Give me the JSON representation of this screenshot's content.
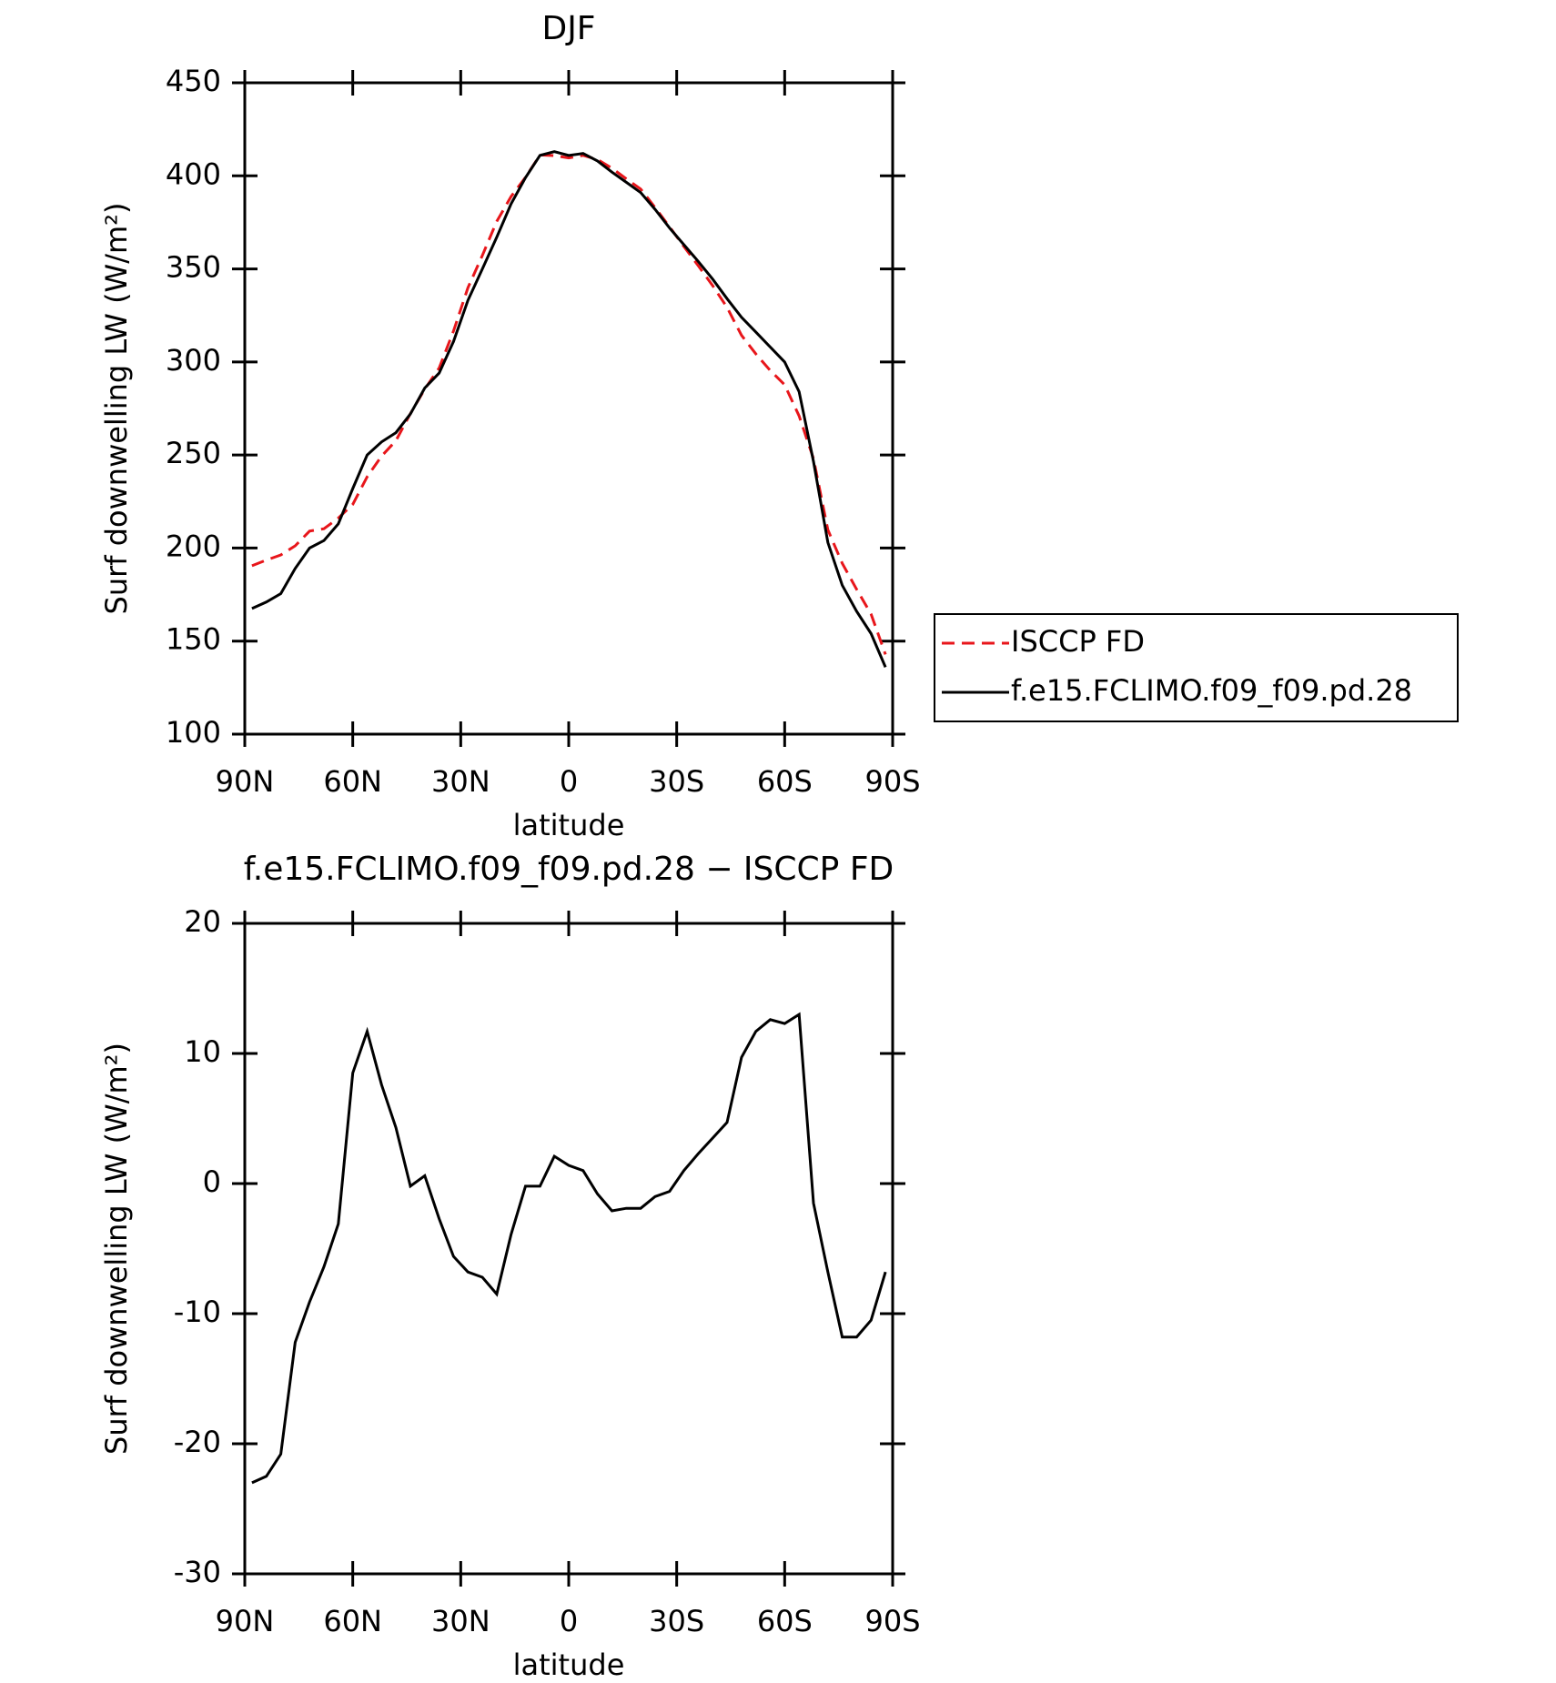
{
  "chart_data": [
    {
      "type": "line",
      "title": "DJF",
      "xlabel": "latitude",
      "ylabel": "Surf downwelling LW (W/m²)",
      "x": [
        88,
        84,
        80,
        76,
        72,
        68,
        64,
        60,
        56,
        52,
        48,
        44,
        40,
        36,
        32,
        28,
        24,
        20,
        16,
        12,
        8,
        4,
        0,
        -4,
        -8,
        -12,
        -16,
        -20,
        -24,
        -28,
        -32,
        -36,
        -40,
        -44,
        -48,
        -52,
        -56,
        -60,
        -64,
        -68,
        -72,
        -76,
        -80,
        -84,
        -88
      ],
      "series": [
        {
          "name": "ISCCP FD",
          "color": "#e8161b",
          "dash": true,
          "values": [
            190.5,
            193.5,
            196.3,
            201.2,
            209.1,
            210.4,
            216.1,
            223.5,
            238.3,
            249.4,
            257.7,
            272.2,
            285.4,
            296.7,
            316.6,
            339.8,
            357.2,
            375.5,
            388.9,
            399.2,
            411.2,
            410.9,
            409.6,
            411,
            408.8,
            404.1,
            398.4,
            392.9,
            383,
            372.6,
            362,
            351.7,
            341,
            329.3,
            314.3,
            304.3,
            295.4,
            287.7,
            271,
            248,
            209.8,
            191.8,
            177.8,
            164.5,
            142.8
          ]
        },
        {
          "name": "f.e15.FCLIMO.f09_f09.pd.28",
          "color": "#000000",
          "dash": false,
          "values": [
            167.5,
            171,
            175.5,
            189,
            200,
            204,
            213,
            232,
            250,
            257,
            262,
            272,
            286,
            294,
            311,
            333,
            350,
            367,
            385,
            399,
            411,
            413,
            411,
            412,
            408,
            402,
            396.5,
            391,
            382,
            372,
            363,
            354,
            344.5,
            334,
            324,
            316,
            308,
            300,
            284,
            246.5,
            203,
            180,
            166,
            154,
            136
          ]
        }
      ],
      "xlim": [
        90,
        -90
      ],
      "xticks": [
        {
          "value": 90,
          "label": "90N"
        },
        {
          "value": 60,
          "label": "60N"
        },
        {
          "value": 30,
          "label": "30N"
        },
        0,
        {
          "value": -30,
          "label": "30S"
        },
        {
          "value": -60,
          "label": "60S"
        },
        {
          "value": -90,
          "label": "90S"
        }
      ],
      "ylim": [
        100,
        450
      ],
      "yticks": [
        100,
        150,
        200,
        250,
        300,
        350,
        400,
        450
      ],
      "legend": "right"
    },
    {
      "type": "line",
      "title": "f.e15.FCLIMO.f09_f09.pd.28 − ISCCP FD",
      "xlabel": "latitude",
      "ylabel": "Surf downwelling LW (W/m²)",
      "x": [
        88,
        84,
        80,
        76,
        72,
        68,
        64,
        60,
        56,
        52,
        48,
        44,
        40,
        36,
        32,
        28,
        24,
        20,
        16,
        12,
        8,
        4,
        0,
        -4,
        -8,
        -12,
        -16,
        -20,
        -24,
        -28,
        -32,
        -36,
        -40,
        -44,
        -48,
        -52,
        -56,
        -60,
        -64,
        -68,
        -72,
        -76,
        -80,
        -84,
        -88
      ],
      "series": [
        {
          "color": "#000000",
          "dash": false,
          "values": [
            -23,
            -22.5,
            -20.8,
            -12.2,
            -9.1,
            -6.4,
            -3.1,
            8.5,
            11.7,
            7.6,
            4.3,
            -0.2,
            0.6,
            -2.7,
            -5.6,
            -6.8,
            -7.2,
            -8.5,
            -3.9,
            -0.2,
            -0.2,
            2.1,
            1.4,
            1,
            -0.8,
            -2.1,
            -1.9,
            -1.9,
            -1,
            -0.6,
            1,
            2.3,
            3.5,
            4.7,
            9.7,
            11.7,
            12.6,
            12.3,
            13,
            -1.5,
            -6.8,
            -11.8,
            -11.8,
            -10.5,
            -6.8
          ]
        }
      ],
      "xlim": [
        90,
        -90
      ],
      "xticks": [
        {
          "value": 90,
          "label": "90N"
        },
        {
          "value": 60,
          "label": "60N"
        },
        {
          "value": 30,
          "label": "30N"
        },
        0,
        {
          "value": -30,
          "label": "30S"
        },
        {
          "value": -60,
          "label": "60S"
        },
        {
          "value": -90,
          "label": "90S"
        }
      ],
      "ylim": [
        -30,
        20
      ],
      "yticks": [
        -30,
        -20,
        -10,
        0,
        10,
        20
      ]
    }
  ]
}
